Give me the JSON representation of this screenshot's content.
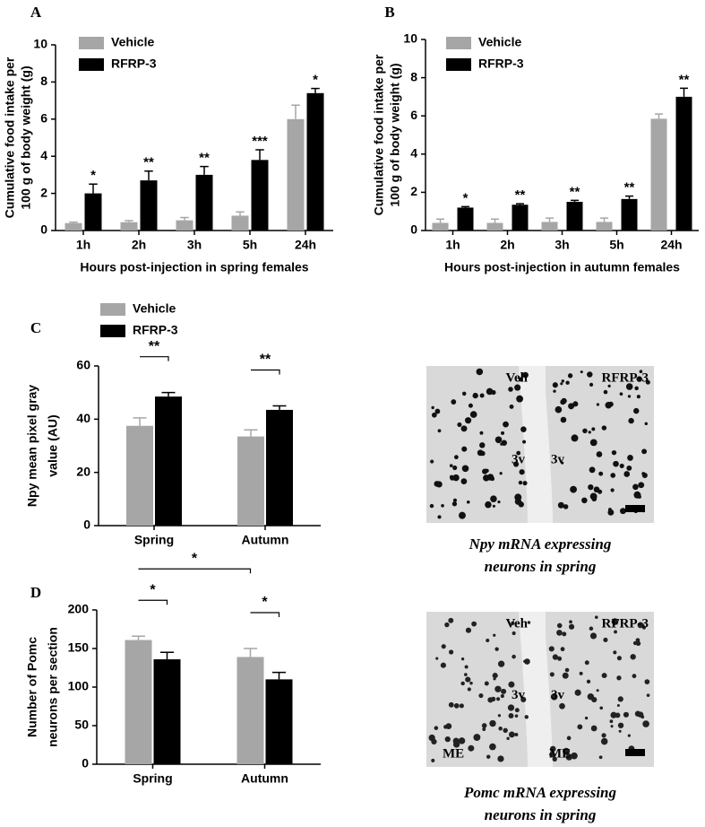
{
  "chart_data": [
    {
      "type": "bar",
      "panel": "A",
      "ylabel": [
        "Cumulative food intake per",
        "100 g of body weight (g)"
      ],
      "xlabel": "Hours post-injection in spring females",
      "categories": [
        "1h",
        "2h",
        "3h",
        "5h",
        "24h"
      ],
      "series": [
        {
          "name": "Vehicle",
          "color": "#a6a6a6",
          "values": [
            0.4,
            0.45,
            0.55,
            0.8,
            6.0
          ],
          "errors": [
            0.05,
            0.08,
            0.15,
            0.2,
            0.75
          ]
        },
        {
          "name": "RFRP-3",
          "color": "#000000",
          "values": [
            2.0,
            2.7,
            3.0,
            3.8,
            7.4
          ],
          "errors": [
            0.5,
            0.5,
            0.45,
            0.55,
            0.25
          ],
          "annotations": [
            "*",
            "**",
            "**",
            "***",
            "*"
          ]
        }
      ],
      "ylim": [
        0,
        10
      ],
      "yticks": [
        0,
        2,
        4,
        6,
        8,
        10
      ],
      "legend": true
    },
    {
      "type": "bar",
      "panel": "B",
      "ylabel": [
        "Cumulative food intake per",
        "100 g of body weight (g)"
      ],
      "xlabel": "Hours post-injection in autumn females",
      "categories": [
        "1h",
        "2h",
        "3h",
        "5h",
        "24h"
      ],
      "series": [
        {
          "name": "Vehicle",
          "color": "#a6a6a6",
          "values": [
            0.4,
            0.4,
            0.45,
            0.45,
            5.85
          ],
          "errors": [
            0.2,
            0.2,
            0.2,
            0.2,
            0.25
          ]
        },
        {
          "name": "RFRP-3",
          "color": "#000000",
          "values": [
            1.2,
            1.35,
            1.5,
            1.65,
            7.0
          ],
          "errors": [
            0.05,
            0.05,
            0.08,
            0.15,
            0.45
          ],
          "annotations": [
            "*",
            "**",
            "**",
            "**",
            "**"
          ]
        }
      ],
      "ylim": [
        0,
        10
      ],
      "yticks": [
        0,
        2,
        4,
        6,
        8,
        10
      ],
      "legend": true
    },
    {
      "type": "bar",
      "panel": "C",
      "ylabel": [
        "Npy mean pixel gray",
        "value (AU)"
      ],
      "categories": [
        "Spring",
        "Autumn"
      ],
      "series": [
        {
          "name": "Vehicle",
          "color": "#a6a6a6",
          "values": [
            37.5,
            33.5
          ],
          "errors": [
            3,
            2.5
          ]
        },
        {
          "name": "RFRP-3",
          "color": "#000000",
          "values": [
            48.5,
            43.5
          ],
          "errors": [
            1.5,
            1.5
          ]
        }
      ],
      "brackets": [
        {
          "category": 0,
          "label": "**"
        },
        {
          "category": 1,
          "label": "**"
        }
      ],
      "ylim": [
        0,
        60
      ],
      "yticks": [
        0,
        20,
        40,
        60
      ],
      "legend": true
    },
    {
      "type": "bar",
      "panel": "D",
      "ylabel": [
        "Number of Pomc",
        "neurons per section"
      ],
      "categories": [
        "Spring",
        "Autumn"
      ],
      "series": [
        {
          "name": "Vehicle",
          "color": "#a6a6a6",
          "values": [
            161,
            139
          ],
          "errors": [
            5,
            11
          ]
        },
        {
          "name": "RFRP-3",
          "color": "#000000",
          "values": [
            136,
            110
          ],
          "errors": [
            9,
            9
          ]
        }
      ],
      "brackets": [
        {
          "category": 0,
          "label": "*"
        },
        {
          "category": 1,
          "label": "*"
        },
        {
          "series": 0,
          "label": "*"
        }
      ],
      "ylim": [
        0,
        200
      ],
      "yticks": [
        0,
        50,
        100,
        150,
        200
      ],
      "legend": false
    }
  ],
  "micrographs": [
    {
      "images": [
        {
          "labels": [
            "Veh",
            "3v"
          ]
        },
        {
          "labels": [
            "RFRP-3",
            "3v"
          ]
        }
      ],
      "caption": [
        "Npy mRNA expressing",
        "neurons in spring"
      ]
    },
    {
      "images": [
        {
          "labels": [
            "Veh",
            "3v",
            "ME"
          ]
        },
        {
          "labels": [
            "RFRP-3",
            "3v",
            "ME"
          ]
        }
      ],
      "caption": [
        "Pomc mRNA expressing",
        "neurons in spring"
      ]
    }
  ]
}
